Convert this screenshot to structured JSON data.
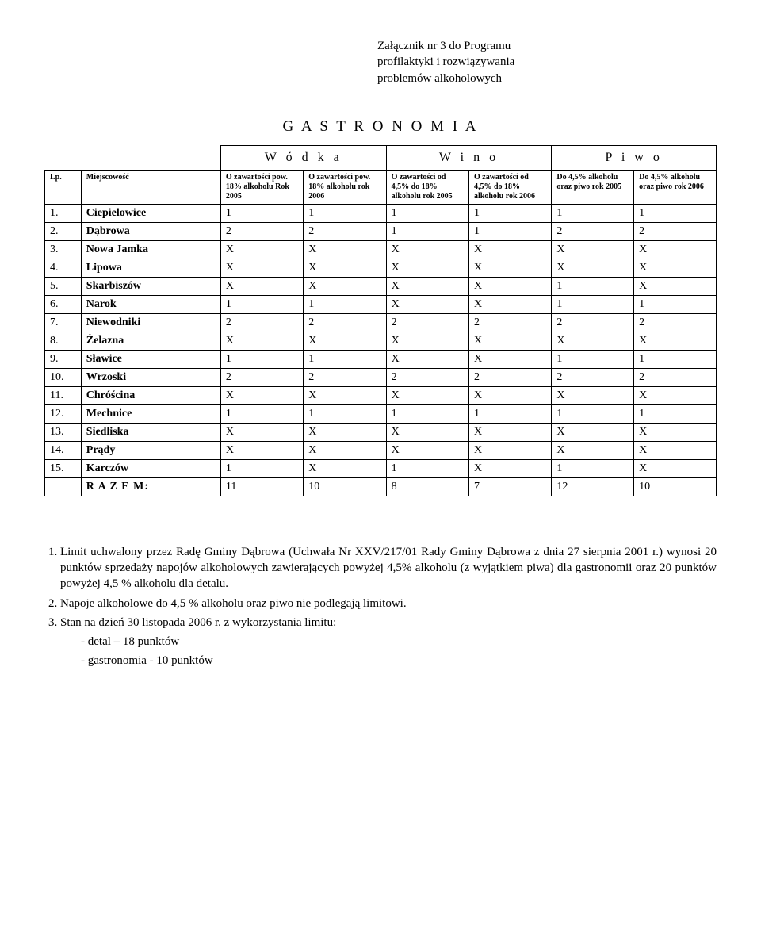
{
  "header": {
    "line1": "Załącznik nr 3 do Programu",
    "line2": "profilaktyki i rozwiązywania",
    "line3": "problemów alkoholowych"
  },
  "title": "G A S T R O N O M I A",
  "groups": {
    "g1": "W ó d k a",
    "g2": "W i n o",
    "g3": "P i w o"
  },
  "columns": {
    "lp": "Lp.",
    "name": "Miejscowość",
    "c1": "O zawartości pow. 18% alkoholu Rok 2005",
    "c2": "O zawartości pow. 18% alkoholu rok 2006",
    "c3": "O zawartości od 4,5% do 18% alkoholu rok 2005",
    "c4": "O zawartości od 4,5% do 18% alkoholu rok 2006",
    "c5": "Do 4,5% alkoholu oraz piwo rok 2005",
    "c6": "Do 4,5% alkoholu oraz piwo rok 2006"
  },
  "rows": [
    {
      "lp": "1.",
      "name": "Ciepielowice",
      "v": [
        "1",
        "1",
        "1",
        "1",
        "1",
        "1"
      ]
    },
    {
      "lp": "2.",
      "name": "Dąbrowa",
      "v": [
        "2",
        "2",
        "1",
        "1",
        "2",
        "2"
      ]
    },
    {
      "lp": "3.",
      "name": "Nowa Jamka",
      "v": [
        "X",
        "X",
        "X",
        "X",
        "X",
        "X"
      ]
    },
    {
      "lp": "4.",
      "name": "Lipowa",
      "v": [
        "X",
        "X",
        "X",
        "X",
        "X",
        "X"
      ]
    },
    {
      "lp": "5.",
      "name": "Skarbiszów",
      "v": [
        "X",
        "X",
        "X",
        "X",
        "1",
        "X"
      ]
    },
    {
      "lp": "6.",
      "name": "Narok",
      "v": [
        "1",
        "1",
        "X",
        "X",
        "1",
        "1"
      ]
    },
    {
      "lp": "7.",
      "name": "Niewodniki",
      "v": [
        "2",
        "2",
        "2",
        "2",
        "2",
        "2"
      ]
    },
    {
      "lp": "8.",
      "name": "Żelazna",
      "v": [
        "X",
        "X",
        "X",
        "X",
        "X",
        "X"
      ]
    },
    {
      "lp": "9.",
      "name": "Sławice",
      "v": [
        "1",
        "1",
        "X",
        "X",
        "1",
        "1"
      ]
    },
    {
      "lp": "10.",
      "name": "Wrzoski",
      "v": [
        "2",
        "2",
        "2",
        "2",
        "2",
        "2"
      ]
    },
    {
      "lp": "11.",
      "name": "Chróścina",
      "v": [
        "X",
        "X",
        "X",
        "X",
        "X",
        "X"
      ]
    },
    {
      "lp": "12.",
      "name": "Mechnice",
      "v": [
        "1",
        "1",
        "1",
        "1",
        "1",
        "1"
      ]
    },
    {
      "lp": "13.",
      "name": "Siedliska",
      "v": [
        "X",
        "X",
        "X",
        "X",
        "X",
        "X"
      ]
    },
    {
      "lp": "14.",
      "name": "Prądy",
      "v": [
        "X",
        "X",
        "X",
        "X",
        "X",
        "X"
      ]
    },
    {
      "lp": "15.",
      "name": "Karczów",
      "v": [
        "1",
        "X",
        "1",
        "X",
        "1",
        "X"
      ]
    }
  ],
  "total": {
    "label": "R A Z E M:",
    "v": [
      "11",
      "10",
      "8",
      "7",
      "12",
      "10"
    ]
  },
  "footer": {
    "p1": "Limit uchwalony przez Radę Gminy  Dąbrowa (Uchwała Nr XXV/217/01 Rady Gminy Dąbrowa z dnia 27 sierpnia 2001 r.) wynosi 20 punktów sprzedaży napojów alkoholowych zawierających powyżej 4,5% alkoholu (z wyjątkiem piwa) dla gastronomii oraz 20 punktów powyżej 4,5 % alkoholu dla detalu.",
    "p2": "Napoje alkoholowe do 4,5 % alkoholu oraz piwo nie podlegają limitowi.",
    "p3": "Stan na dzień 30 listopada 2006 r. z wykorzystania limitu:",
    "sub1": "detal          – 18 punktów",
    "sub2": "gastronomia -  10 punktów"
  }
}
